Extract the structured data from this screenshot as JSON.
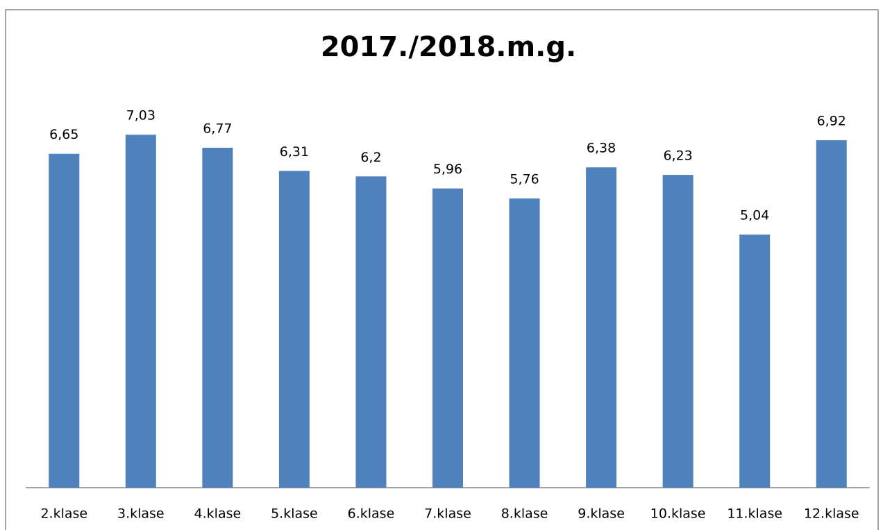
{
  "chart_data": {
    "type": "bar",
    "title": "2017./2018.m.g.",
    "categories": [
      "2.klase",
      "3.klase",
      "4.klase",
      "5.klase",
      "6.klase",
      "7.klase",
      "8.klase",
      "9.klase",
      "10.klase",
      "11.klase",
      "12.klase"
    ],
    "values": [
      6.65,
      7.03,
      6.77,
      6.31,
      6.2,
      5.96,
      5.76,
      6.38,
      6.23,
      5.04,
      6.92
    ],
    "value_labels": [
      "6,65",
      "7,03",
      "6,77",
      "6,31",
      "6,2",
      "5,96",
      "5,76",
      "6,38",
      "6,23",
      "5,04",
      "6,92"
    ],
    "color": "#4f81bd",
    "ylim": [
      0,
      8
    ],
    "grid": false
  }
}
